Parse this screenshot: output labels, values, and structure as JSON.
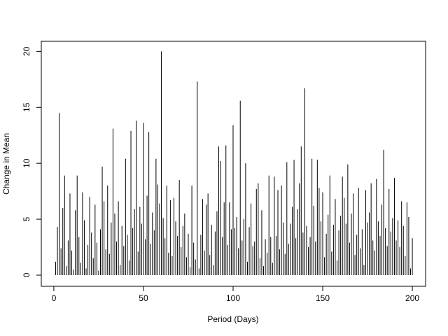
{
  "chart_data": {
    "type": "bar",
    "x_label": "Period (Days)",
    "y_label": "Change in Mean",
    "color": "#000000",
    "x": [
      1,
      2,
      3,
      4,
      5,
      6,
      7,
      8,
      9,
      10,
      11,
      12,
      13,
      14,
      15,
      16,
      17,
      18,
      19,
      20,
      21,
      22,
      23,
      24,
      25,
      26,
      27,
      28,
      29,
      30,
      31,
      32,
      33,
      34,
      35,
      36,
      37,
      38,
      39,
      40,
      41,
      42,
      43,
      44,
      45,
      46,
      47,
      48,
      49,
      50,
      51,
      52,
      53,
      54,
      55,
      56,
      57,
      58,
      59,
      60,
      61,
      62,
      63,
      64,
      65,
      66,
      67,
      68,
      69,
      70,
      71,
      72,
      73,
      74,
      75,
      76,
      77,
      78,
      79,
      80,
      81,
      82,
      83,
      84,
      85,
      86,
      87,
      88,
      89,
      90,
      91,
      92,
      93,
      94,
      95,
      96,
      97,
      98,
      99,
      100,
      101,
      102,
      103,
      104,
      105,
      106,
      107,
      108,
      109,
      110,
      111,
      112,
      113,
      114,
      115,
      116,
      117,
      118,
      119,
      120,
      121,
      122,
      123,
      124,
      125,
      126,
      127,
      128,
      129,
      130,
      131,
      132,
      133,
      134,
      135,
      136,
      137,
      138,
      139,
      140,
      141,
      142,
      143,
      144,
      145,
      146,
      147,
      148,
      149,
      150,
      151,
      152,
      153,
      154,
      155,
      156,
      157,
      158,
      159,
      160,
      161,
      162,
      163,
      164,
      165,
      166,
      167,
      168,
      169,
      170,
      171,
      172,
      173,
      174,
      175,
      176,
      177,
      178,
      179,
      180,
      181,
      182,
      183,
      184,
      185,
      186,
      187,
      188,
      189,
      190,
      191,
      192,
      193,
      194,
      195,
      196,
      197,
      198,
      199,
      200
    ],
    "values": [
      1.2,
      4.3,
      14.5,
      2.4,
      6,
      8.9,
      0.8,
      3.1,
      7.3,
      2.2,
      0.5,
      5.8,
      8.9,
      3.4,
      1.1,
      7.4,
      4.9,
      0.6,
      2.7,
      7,
      3.8,
      1.5,
      6.3,
      2.9,
      0.4,
      4.1,
      9.7,
      6.6,
      2.3,
      8,
      1.9,
      4.7,
      13.1,
      5.5,
      3,
      6.6,
      0.9,
      4.4,
      2.6,
      10.4,
      3.6,
      1.3,
      12.9,
      4.2,
      5.9,
      13.8,
      2.1,
      6.1,
      4.6,
      13.6,
      3.2,
      7.1,
      12.8,
      2.8,
      5.6,
      4,
      10.4,
      8.1,
      6.4,
      20,
      5.1,
      3.3,
      8,
      2,
      6.7,
      1.7,
      6.9,
      4.8,
      3.5,
      8.5,
      2.5,
      4.4,
      5.5,
      1.6,
      3.7,
      0.7,
      8,
      2.9,
      1.4,
      17.3,
      0.6,
      3.6,
      6.8,
      2.2,
      6.3,
      7.3,
      1.8,
      4.5,
      0.9,
      3.9,
      5.7,
      11.5,
      10.2,
      3.4,
      6.5,
      11.6,
      2.7,
      6.5,
      4.1,
      13.4,
      4.2,
      5.2,
      2.4,
      15.6,
      3.1,
      5,
      10,
      1.2,
      4.3,
      6.4,
      2.6,
      3,
      7.7,
      8.2,
      1.5,
      5.8,
      0.8,
      3.2,
      2,
      8.9,
      3.4,
      1.1,
      8.8,
      3.5,
      7.6,
      2.3,
      8,
      4.7,
      1.9,
      10.1,
      2.8,
      4.6,
      6.1,
      10.3,
      3.3,
      5.9,
      8.2,
      11.5,
      3.8,
      16.7,
      4.4,
      2.5,
      3.4,
      10.4,
      6.2,
      3,
      10.3,
      7.8,
      4.8,
      7.4,
      1.6,
      3.7,
      5.4,
      8.9,
      2.1,
      4.5,
      6.8,
      1.3,
      4,
      5.3,
      8.8,
      6.9,
      4.6,
      9.9,
      2.9,
      5.5,
      7.3,
      1.8,
      3.6,
      7.8,
      2.4,
      4.1,
      0.9,
      7.6,
      4.7,
      5.6,
      8.2,
      3.1,
      2.2,
      8.6,
      4.8,
      3.5,
      6.3,
      11.2,
      4.2,
      2.6,
      7.7,
      3.9,
      5.1,
      8.7,
      3.1,
      4.9,
      2.5,
      6.6,
      4.4,
      1.7,
      6.5,
      5.2,
      0.6,
      3.3
    ],
    "xlim": [
      -7,
      207.4
    ],
    "ylim": [
      -1,
      20.9
    ],
    "xticks": [
      0,
      50,
      100,
      150,
      200
    ],
    "yticks": [
      0,
      5,
      10,
      15,
      20
    ]
  }
}
